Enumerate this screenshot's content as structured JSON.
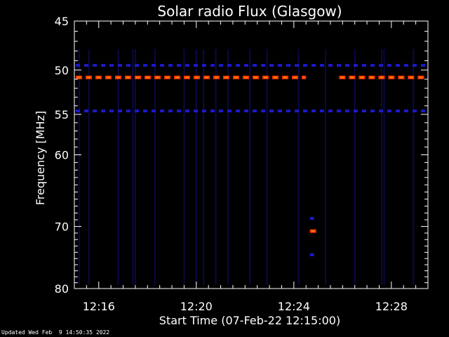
{
  "chart_data": {
    "type": "heatmap",
    "title": "Solar radio Flux (Glasgow)",
    "xlabel": "Start Time (07-Feb-22 12:15:00)",
    "ylabel": "Frequency [MHz]",
    "x_range_minutes": [
      0,
      14.5
    ],
    "x_ticks": [
      {
        "minute": 1,
        "label": "12:16"
      },
      {
        "minute": 5,
        "label": "12:20"
      },
      {
        "minute": 9,
        "label": "12:24"
      },
      {
        "minute": 13,
        "label": "12:28"
      }
    ],
    "ylim": [
      45,
      80
    ],
    "y_scale": "log",
    "y_ticks": [
      45,
      50,
      55,
      60,
      70,
      80
    ],
    "background_color": "#000000",
    "high_color": "#ff3300",
    "mid_color": "#ff8800",
    "low_color": "#1a1acc",
    "features": [
      {
        "name": "band",
        "freq_mhz": 50.8,
        "from_minute": 0,
        "to_minute": 9.5,
        "intensity": "high"
      },
      {
        "name": "band",
        "freq_mhz": 50.8,
        "from_minute": 10.8,
        "to_minute": 14.5,
        "intensity": "high"
      },
      {
        "name": "band",
        "freq_mhz": 49.5,
        "from_minute": 0,
        "to_minute": 14.5,
        "intensity": "low"
      },
      {
        "name": "band",
        "freq_mhz": 54.6,
        "from_minute": 0,
        "to_minute": 14.5,
        "intensity": "low"
      },
      {
        "name": "burst",
        "freq_mhz": 70.7,
        "from_minute": 9.6,
        "to_minute": 10.0,
        "intensity": "high"
      },
      {
        "name": "burst",
        "freq_mhz": 68.8,
        "from_minute": 9.6,
        "to_minute": 10.0,
        "intensity": "low"
      },
      {
        "name": "burst",
        "freq_mhz": 74.4,
        "from_minute": 9.6,
        "to_minute": 10.0,
        "intensity": "low"
      }
    ],
    "faint_streak_minutes": [
      0.2,
      0.6,
      1.8,
      2.4,
      2.5,
      3.3,
      4.5,
      5.0,
      5.3,
      5.8,
      6.3,
      7.2,
      7.9,
      9.2,
      10.3,
      11.5,
      12.6,
      12.7,
      13.9
    ]
  },
  "footer": "Updated Wed Feb  9 14:50:35 2022"
}
